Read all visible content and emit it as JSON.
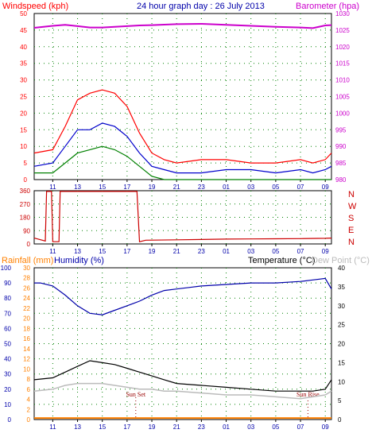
{
  "header": {
    "windspeed_label": "Windspeed (kph)",
    "graph_title": "24 hour graph day : 26 July 2013",
    "barometer_label": "Barometer (hpa)",
    "rainfall_label": "Rainfall (mm)",
    "humidity_label": "Humidity (%)",
    "temperature_label": "Temperature (°C)",
    "dewpoint_label": "Dew Point (°C)"
  },
  "colors": {
    "windspeed": "#ff0000",
    "barometer": "#cc00cc",
    "gust": "#ff0000",
    "average": "#0000cc",
    "low": "#008000",
    "direction": "#cc0000",
    "humidity": "#0000aa",
    "temperature": "#000000",
    "dewpoint": "#bbbbbb",
    "rainfall": "#ff8000",
    "axis_blue": "#0000aa"
  },
  "chart_data": [
    {
      "type": "line",
      "panel": "wind-barometer",
      "x_ticks": [
        "11",
        "13",
        "15",
        "17",
        "19",
        "21",
        "23",
        "01",
        "03",
        "05",
        "07",
        "09"
      ],
      "y_left": {
        "label": "Windspeed (kph)",
        "ticks": [
          0,
          5,
          10,
          15,
          20,
          25,
          30,
          35,
          40,
          45,
          50
        ],
        "ylim": [
          0,
          50
        ]
      },
      "y_right": {
        "label": "Barometer (hpa)",
        "ticks": [
          980,
          985,
          990,
          995,
          1000,
          1005,
          1010,
          1015,
          1020,
          1025,
          1030
        ],
        "ylim": [
          980,
          1030
        ]
      },
      "grid": true,
      "series": [
        {
          "axis": "right",
          "hours": [
            9.5,
            11,
            12,
            13,
            14,
            15,
            16,
            17,
            18,
            19,
            21,
            23,
            1,
            3,
            5,
            7,
            8,
            9,
            9.5
          ],
          "values": [
            1025.7,
            1026.3,
            1026.6,
            1026.2,
            1025.8,
            1025.8,
            1026.0,
            1026.2,
            1026.4,
            1026.5,
            1026.8,
            1026.9,
            1026.6,
            1026.3,
            1026.0,
            1025.8,
            1025.6,
            1026.4,
            1026.5
          ]
        },
        {
          "axis": "left",
          "hours": [
            9.5,
            11,
            12,
            13,
            14,
            15,
            16,
            17,
            18,
            19,
            20,
            21,
            23,
            1,
            3,
            5,
            7,
            8,
            9,
            9.5
          ],
          "values": [
            8,
            9,
            16,
            24,
            26,
            27,
            26,
            22,
            14,
            8,
            6,
            5,
            6,
            6,
            5,
            5,
            6,
            5,
            6,
            8
          ]
        },
        {
          "axis": "left",
          "hours": [
            9.5,
            11,
            12,
            13,
            14,
            15,
            16,
            17,
            18,
            19,
            20,
            21,
            23,
            1,
            3,
            5,
            7,
            8,
            9,
            9.5
          ],
          "values": [
            4,
            5,
            10,
            15,
            15,
            17,
            16,
            13,
            8,
            4,
            3,
            2,
            2,
            3,
            3,
            2,
            3,
            2,
            3,
            4
          ]
        },
        {
          "axis": "left",
          "hours": [
            9.5,
            11,
            12,
            13,
            14,
            15,
            16,
            17,
            18,
            19,
            20,
            21,
            23,
            1,
            3,
            5,
            7,
            8,
            9,
            9.5
          ],
          "values": [
            2,
            2,
            5,
            8,
            9,
            10,
            9,
            7,
            4,
            1,
            0,
            0,
            0,
            0,
            0,
            0,
            0,
            0,
            0,
            0
          ]
        }
      ]
    },
    {
      "type": "line",
      "panel": "wind-direction",
      "x_ticks": [
        "11",
        "13",
        "15",
        "17",
        "19",
        "21",
        "23",
        "01",
        "03",
        "05",
        "07",
        "09"
      ],
      "y_left": {
        "ticks": [
          0,
          90,
          180,
          270,
          360
        ],
        "ylim": [
          0,
          360
        ]
      },
      "direction_labels": [
        "N",
        "W",
        "S",
        "E",
        "N"
      ],
      "grid": true,
      "series": [
        {
          "hours": [
            9.5,
            10.4,
            10.5,
            10.9,
            11.0,
            11.5,
            11.6,
            17.8,
            18.0,
            18.5,
            21,
            23,
            1,
            3,
            5,
            7,
            9,
            9.5
          ],
          "values": [
            40,
            20,
            355,
            355,
            15,
            15,
            355,
            355,
            15,
            25,
            28,
            30,
            33,
            34,
            35,
            36,
            38,
            40
          ]
        }
      ]
    },
    {
      "type": "line",
      "panel": "humidity-temperature-rain",
      "x_ticks": [
        "11",
        "13",
        "15",
        "17",
        "19",
        "21",
        "23",
        "01",
        "03",
        "05",
        "07",
        "09"
      ],
      "y_humidity": {
        "label": "Humidity (%)",
        "ticks": [
          0,
          10,
          20,
          30,
          40,
          50,
          60,
          70,
          80,
          90,
          100
        ],
        "ylim": [
          0,
          100
        ]
      },
      "y_rainfall": {
        "label": "Rainfall (mm)",
        "ticks": [
          0,
          2,
          4,
          6,
          8,
          10,
          12,
          14,
          16,
          18,
          20,
          22,
          24,
          26,
          28,
          30
        ],
        "ylim": [
          0,
          30
        ]
      },
      "y_temperature": {
        "label": "Temperature (°C)",
        "ticks": [
          0,
          5,
          10,
          15,
          20,
          25,
          30,
          35,
          40
        ],
        "ylim": [
          0,
          40
        ]
      },
      "grid": true,
      "annotations": [
        {
          "text": "Sun Set",
          "hour": 17.7
        },
        {
          "text": "Sun Rise",
          "hour": 7.6
        }
      ],
      "series": [
        {
          "axis": "humidity",
          "hours": [
            9.5,
            10,
            11,
            12,
            13,
            14,
            15,
            16,
            17,
            18,
            19,
            20,
            21,
            22,
            23,
            1,
            3,
            5,
            7,
            8,
            9,
            9.5
          ],
          "values": [
            90,
            90,
            88,
            82,
            75,
            70,
            69,
            72,
            75,
            78,
            82,
            85,
            86,
            87,
            88,
            89,
            90,
            90,
            91,
            92,
            93,
            86
          ]
        },
        {
          "axis": "temperature",
          "hours": [
            9.5,
            11,
            12,
            13,
            14,
            15,
            16,
            17,
            18,
            19,
            20,
            21,
            23,
            1,
            3,
            5,
            7,
            8,
            9,
            9.5
          ],
          "values": [
            10.5,
            11,
            12.5,
            14,
            15.5,
            15,
            14.5,
            13.5,
            12.5,
            11.5,
            10.5,
            9.5,
            9,
            8.5,
            8,
            7.5,
            7.5,
            7.5,
            8,
            10.5
          ]
        },
        {
          "axis": "temperature",
          "hours": [
            9.5,
            11,
            12,
            13,
            14,
            15,
            16,
            17,
            18,
            19,
            20,
            21,
            23,
            1,
            3,
            5,
            7,
            8,
            9,
            9.5
          ],
          "values": [
            7.5,
            8,
            9,
            9.5,
            9.5,
            9.5,
            9,
            8.5,
            8,
            8,
            7.5,
            7.5,
            7,
            6.5,
            6.5,
            6,
            5.5,
            6,
            6.5,
            7.5
          ]
        },
        {
          "axis": "rainfall",
          "hours": [
            9.5,
            11,
            15,
            19,
            23,
            3,
            7,
            9.5
          ],
          "values": [
            0.3,
            0.3,
            0.3,
            0.3,
            0.3,
            0.3,
            0.3,
            0.3
          ]
        }
      ]
    }
  ]
}
